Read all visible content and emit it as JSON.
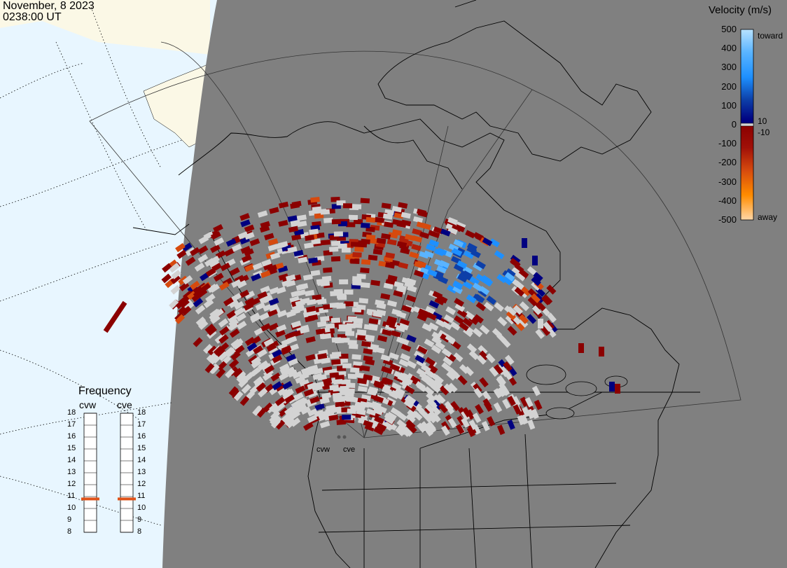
{
  "header": {
    "date": "November, 8 2023",
    "time": "0238:00 UT"
  },
  "colorbar": {
    "title": "Velocity (m/s)",
    "ticks": [
      "500",
      "400",
      "300",
      "200",
      "100",
      "0",
      "-100",
      "-200",
      "-300",
      "-400",
      "-500"
    ],
    "side_labels": {
      "toward": "toward",
      "away": "away",
      "pos10": "10",
      "neg10": "-10"
    },
    "colors": {
      "toward_max": "#b8e2ff",
      "toward_mid": "#1e90ff",
      "toward_low": "#0d3fa8",
      "near_zero": "#000080",
      "zero": "#d3d3d3",
      "away_low": "#8b0000",
      "away_mid": "#d64a0e",
      "away_high": "#ff8c00",
      "away_max": "#ffd8a8"
    }
  },
  "frequency": {
    "title": "Frequency",
    "radars": [
      {
        "name": "cvw",
        "value": 10.8
      },
      {
        "name": "cve",
        "value": 10.8
      }
    ],
    "scale": [
      "18",
      "17",
      "16",
      "15",
      "14",
      "13",
      "12",
      "11",
      "10",
      "9",
      "8"
    ]
  },
  "sites": [
    {
      "name": "cvw"
    },
    {
      "name": "cve"
    }
  ],
  "map_colors": {
    "land": "#808080",
    "ocean": "#e8f6ff",
    "dayside": "#fbf8e6",
    "coastline": "#000000",
    "ground_scatter": "#d3d3d3"
  }
}
